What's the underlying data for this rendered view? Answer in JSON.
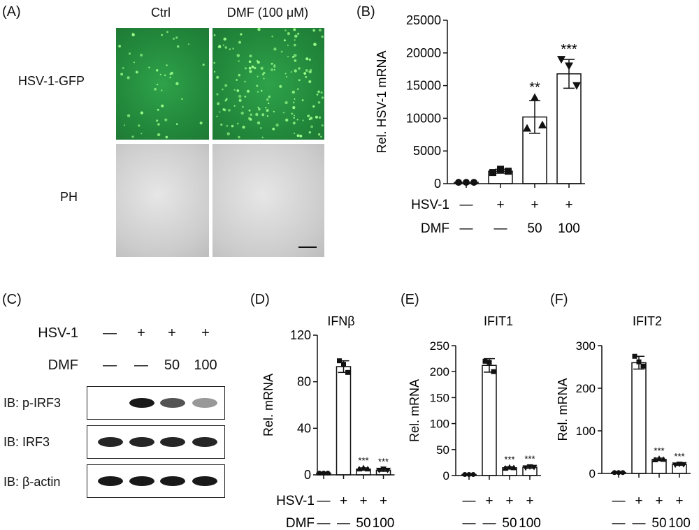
{
  "panels": {
    "A": {
      "letter": "(A)",
      "col_headers": [
        "Ctrl",
        "DMF (100 μM)"
      ],
      "row_labels": [
        "HSV-1-GFP",
        "PH"
      ]
    },
    "B": {
      "letter": "(B)"
    },
    "C": {
      "letter": "(C)",
      "hsv_label": "HSV-1",
      "hsv_values": [
        "—",
        "+",
        "+",
        "+"
      ],
      "dmf_label": "DMF",
      "dmf_values": [
        "—",
        "—",
        "50",
        "100"
      ],
      "blots": [
        "IB: p-IRF3",
        "IB: IRF3",
        "IB: β-actin"
      ],
      "p_irf3_intensity": [
        0,
        1.0,
        0.75,
        0.45
      ]
    },
    "D": {
      "letter": "(D)"
    },
    "E": {
      "letter": "(E)"
    },
    "F": {
      "letter": "(F)"
    }
  },
  "chart_data": [
    {
      "panel": "B",
      "type": "bar",
      "title": "",
      "ylabel": "Rel. HSV-1 mRNA",
      "ylim": [
        0,
        25000
      ],
      "yticks": [
        0,
        5000,
        10000,
        15000,
        20000,
        25000
      ],
      "categories": [
        "1",
        "2",
        "3",
        "4"
      ],
      "values": [
        200,
        1900,
        10200,
        16800
      ],
      "error": [
        0,
        300,
        2500,
        2200
      ],
      "points": [
        [
          200,
          200,
          200
        ],
        [
          1700,
          2200,
          1900
        ],
        [
          8500,
          13200,
          9000
        ],
        [
          19000,
          18000,
          15000
        ]
      ],
      "point_marker": [
        "circle",
        "square",
        "triangle",
        "triangle-down"
      ],
      "significance": [
        "",
        "",
        "**",
        "***"
      ],
      "conditions": [
        {
          "label": "HSV-1",
          "values": [
            "—",
            "+",
            "+",
            "+"
          ]
        },
        {
          "label": "DMF",
          "values": [
            "—",
            "—",
            "50",
            "100"
          ]
        }
      ]
    },
    {
      "panel": "D",
      "type": "bar",
      "title": "IFNβ",
      "ylabel": "Rel. mRNA",
      "ylim": [
        0,
        120
      ],
      "yticks": [
        0,
        40,
        80,
        120
      ],
      "categories": [
        "1",
        "2",
        "3",
        "4"
      ],
      "values": [
        1.5,
        93,
        5,
        4
      ],
      "error": [
        0,
        5,
        1,
        1
      ],
      "points": [
        [
          1.5,
          1.5,
          1.5
        ],
        [
          98,
          95,
          88
        ],
        [
          5,
          6,
          5
        ],
        [
          4,
          5,
          4
        ]
      ],
      "significance": [
        "",
        "",
        "***",
        "***"
      ],
      "conditions": [
        {
          "label": "HSV-1",
          "values": [
            "—",
            "+",
            "+",
            "+"
          ]
        },
        {
          "label": "DMF",
          "values": [
            "—",
            "—",
            "50",
            "100"
          ]
        }
      ]
    },
    {
      "panel": "E",
      "type": "bar",
      "title": "IFIT1",
      "ylabel": "Rel. mRNA",
      "ylim": [
        0,
        250
      ],
      "yticks": [
        0,
        50,
        100,
        150,
        200,
        250
      ],
      "categories": [
        "1",
        "2",
        "3",
        "4"
      ],
      "values": [
        2,
        212,
        15,
        16
      ],
      "error": [
        0,
        13,
        2,
        2
      ],
      "points": [
        [
          2,
          2,
          2
        ],
        [
          220,
          218,
          200
        ],
        [
          14,
          16,
          15
        ],
        [
          15,
          17,
          16
        ]
      ],
      "significance": [
        "",
        "",
        "***",
        "***"
      ],
      "conditions": [
        {
          "label": "",
          "values": [
            "—",
            "+",
            "+",
            "+"
          ]
        },
        {
          "label": "",
          "values": [
            "—",
            "—",
            "50",
            "100"
          ]
        }
      ]
    },
    {
      "panel": "F",
      "type": "bar",
      "title": "IFIT2",
      "ylabel": "Rel. mRNA",
      "ylim": [
        0,
        300
      ],
      "yticks": [
        0,
        100,
        200,
        300
      ],
      "categories": [
        "1",
        "2",
        "3",
        "4"
      ],
      "values": [
        2,
        260,
        33,
        21
      ],
      "error": [
        0,
        15,
        3,
        2
      ],
      "points": [
        [
          2,
          2,
          2
        ],
        [
          275,
          262,
          252
        ],
        [
          32,
          35,
          33
        ],
        [
          20,
          22,
          21
        ]
      ],
      "significance": [
        "",
        "",
        "***",
        "***"
      ],
      "conditions": [
        {
          "label": "",
          "values": [
            "—",
            "+",
            "+",
            "+"
          ]
        },
        {
          "label": "",
          "values": [
            "—",
            "—",
            "50",
            "100"
          ]
        }
      ]
    }
  ],
  "scale_bar_label": ""
}
